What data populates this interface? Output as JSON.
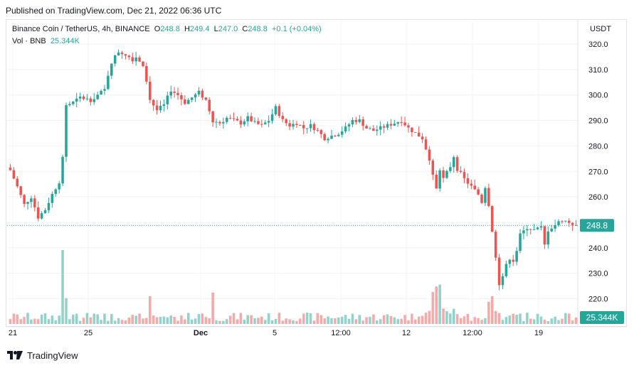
{
  "published": "Published on TradingView.com, Dec 21, 2022 06:36 UTC",
  "legend": {
    "symbol": "Binance Coin / TetherUS, 4h, BINANCE",
    "o_label": "O",
    "o_value": "248.8",
    "h_label": "H",
    "h_value": "249.4",
    "l_label": "L",
    "l_value": "247.0",
    "c_label": "C",
    "c_value": "248.8",
    "change": "+0.1 (+0.04%)",
    "vol_label": "Vol · BNB",
    "vol_value": "25.344K"
  },
  "axis_unit": "USDT",
  "brand": "TradingView",
  "colors": {
    "up": "#26a69a",
    "down": "#ef5350",
    "up_vol": "#92d2cc",
    "down_vol": "#f7a9a7",
    "grid": "#f0f3fa"
  },
  "chart_data": {
    "type": "candlestick",
    "title": "Binance Coin / TetherUS, 4h, BINANCE",
    "ylabel": "USDT",
    "ylim": [
      211,
      325
    ],
    "y_ticks": [
      "320.0",
      "310.0",
      "300.0",
      "290.0",
      "280.0",
      "270.0",
      "260.0",
      "240.0",
      "230.0",
      "220.0"
    ],
    "x_ticks": [
      "21",
      "25",
      "Dec",
      "5",
      "12:00",
      "12",
      "12:00",
      "19"
    ],
    "last_price": "248.8",
    "last_volume": "25.344K",
    "approx_close_path": [
      [
        0,
        270.5
      ],
      [
        2,
        264
      ],
      [
        4,
        257
      ],
      [
        6,
        260
      ],
      [
        8,
        252
      ],
      [
        10,
        255
      ],
      [
        12,
        261
      ],
      [
        14,
        266
      ],
      [
        15,
        275
      ],
      [
        16,
        296
      ],
      [
        18,
        297
      ],
      [
        20,
        299
      ],
      [
        23,
        298
      ],
      [
        25,
        300
      ],
      [
        27,
        302
      ],
      [
        28,
        308
      ],
      [
        29,
        313
      ],
      [
        31,
        317
      ],
      [
        33,
        316
      ],
      [
        35,
        314
      ],
      [
        36,
        315
      ],
      [
        38,
        312
      ],
      [
        39,
        306
      ],
      [
        40,
        298
      ],
      [
        42,
        294
      ],
      [
        44,
        296
      ],
      [
        46,
        302
      ],
      [
        48,
        300
      ],
      [
        50,
        297
      ],
      [
        52,
        299
      ],
      [
        54,
        301
      ],
      [
        56,
        298
      ],
      [
        58,
        290
      ],
      [
        60,
        289
      ],
      [
        62,
        291
      ],
      [
        64,
        290
      ],
      [
        66,
        289
      ],
      [
        68,
        291
      ],
      [
        70,
        289
      ],
      [
        72,
        288
      ],
      [
        74,
        290
      ],
      [
        76,
        295
      ],
      [
        78,
        290
      ],
      [
        80,
        288
      ],
      [
        82,
        289
      ],
      [
        84,
        287
      ],
      [
        86,
        288
      ],
      [
        88,
        286
      ],
      [
        90,
        283
      ],
      [
        92,
        284
      ],
      [
        94,
        285
      ],
      [
        96,
        287
      ],
      [
        98,
        290
      ],
      [
        100,
        290
      ],
      [
        102,
        287
      ],
      [
        104,
        286
      ],
      [
        106,
        287
      ],
      [
        108,
        288
      ],
      [
        110,
        289
      ],
      [
        112,
        290
      ],
      [
        114,
        287
      ],
      [
        116,
        285
      ],
      [
        118,
        283
      ],
      [
        119,
        279
      ],
      [
        120,
        275
      ],
      [
        121,
        268
      ],
      [
        122,
        263
      ],
      [
        123,
        271
      ],
      [
        124,
        267
      ],
      [
        126,
        272
      ],
      [
        127,
        276
      ],
      [
        128,
        271
      ],
      [
        130,
        267
      ],
      [
        132,
        264
      ],
      [
        134,
        261
      ],
      [
        135,
        258
      ],
      [
        136,
        264
      ],
      [
        137,
        257
      ],
      [
        138,
        247
      ],
      [
        139,
        236
      ],
      [
        140,
        226
      ],
      [
        141,
        229
      ],
      [
        142,
        233
      ],
      [
        143,
        236
      ],
      [
        144,
        235
      ],
      [
        145,
        239
      ],
      [
        146,
        245
      ],
      [
        148,
        248
      ],
      [
        150,
        247
      ],
      [
        152,
        248
      ],
      [
        153,
        241
      ],
      [
        154,
        247
      ],
      [
        156,
        249
      ],
      [
        158,
        251
      ],
      [
        160,
        250
      ],
      [
        162,
        248.8
      ]
    ],
    "volume_spikes": [
      [
        15,
        40
      ],
      [
        16,
        14
      ],
      [
        40,
        15
      ],
      [
        58,
        17
      ],
      [
        121,
        15
      ],
      [
        122,
        18
      ],
      [
        123,
        19
      ],
      [
        137,
        12
      ],
      [
        138,
        15
      ],
      [
        139,
        7
      ]
    ]
  }
}
